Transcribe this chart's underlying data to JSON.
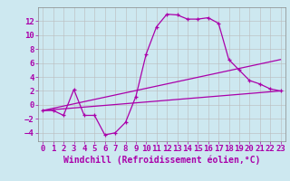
{
  "background_color": "#cde8f0",
  "grid_color": "#bbbbbb",
  "line_color": "#aa00aa",
  "xlabel": "Windchill (Refroidissement éolien,°C)",
  "xlim": [
    -0.5,
    23.5
  ],
  "ylim": [
    -5.2,
    14.0
  ],
  "yticks": [
    -4,
    -2,
    0,
    2,
    4,
    6,
    8,
    10,
    12
  ],
  "xticks": [
    0,
    1,
    2,
    3,
    4,
    5,
    6,
    7,
    8,
    9,
    10,
    11,
    12,
    13,
    14,
    15,
    16,
    17,
    18,
    19,
    20,
    21,
    22,
    23
  ],
  "series1_x": [
    0,
    1,
    2,
    3,
    4,
    5,
    6,
    7,
    8,
    9,
    10,
    11,
    12,
    13,
    14,
    15,
    16,
    17,
    18,
    19,
    20,
    21,
    22,
    23
  ],
  "series1_y": [
    -0.8,
    -0.8,
    -1.5,
    2.2,
    -1.5,
    -1.5,
    -4.3,
    -4.0,
    -2.5,
    1.2,
    7.3,
    11.2,
    13.0,
    12.9,
    12.3,
    12.3,
    12.5,
    11.7,
    6.5,
    5.0,
    3.5,
    3.0,
    2.3,
    2.0
  ],
  "series2_x": [
    0,
    23
  ],
  "series2_y": [
    -0.8,
    2.0
  ],
  "series3_x": [
    0,
    23
  ],
  "series3_y": [
    -0.8,
    6.5
  ],
  "xlabel_fontsize": 7,
  "tick_fontsize": 6.5,
  "ylabel_fontsize": 7
}
